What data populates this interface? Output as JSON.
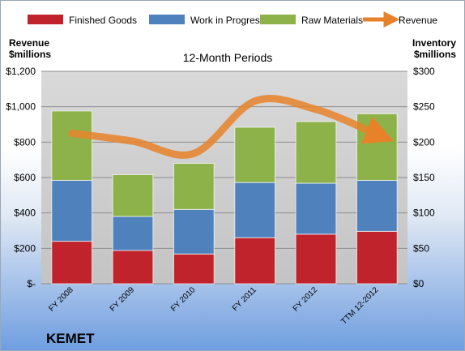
{
  "chart_data": {
    "type": "bar",
    "subtitle": "12-Month Periods",
    "company": "KEMET",
    "left_axis": {
      "title_line1": "Revenue",
      "title_line2": "$millions",
      "ylim": [
        0,
        1200
      ],
      "ticks": [
        0,
        200,
        400,
        600,
        800,
        1000,
        1200
      ],
      "tick_labels": [
        "$-",
        "$200",
        "$400",
        "$600",
        "$800",
        "$1,000",
        "$1,200"
      ]
    },
    "right_axis": {
      "title_line1": "Inventory",
      "title_line2": "$millions",
      "ylim": [
        0,
        300
      ],
      "ticks": [
        0,
        50,
        100,
        150,
        200,
        250,
        300
      ],
      "tick_labels": [
        "$0",
        "$50",
        "$100",
        "$150",
        "$200",
        "$250",
        "$300"
      ]
    },
    "categories": [
      "FY 2008",
      "FY 2009",
      "FY 2010",
      "FY 2011",
      "FY 2012",
      "TTM 12-2012"
    ],
    "stacked_series": [
      {
        "name": "Finished Goods",
        "axis": "right",
        "color": "#c0232b",
        "values": [
          60,
          47,
          42,
          65,
          70,
          74
        ]
      },
      {
        "name": "Work in Progress",
        "axis": "right",
        "color": "#4f81bd",
        "values": [
          86,
          48,
          63,
          78,
          72,
          72
        ]
      },
      {
        "name": "Raw Materials",
        "axis": "right",
        "color": "#8db24a",
        "values": [
          98,
          59,
          65,
          78,
          87,
          94
        ]
      }
    ],
    "line_series": {
      "name": "Revenue",
      "axis": "left",
      "color": "#e8822a",
      "values": [
        850,
        805,
        736,
        1032,
        985,
        844
      ]
    },
    "legend_position": "top",
    "grid": true
  }
}
